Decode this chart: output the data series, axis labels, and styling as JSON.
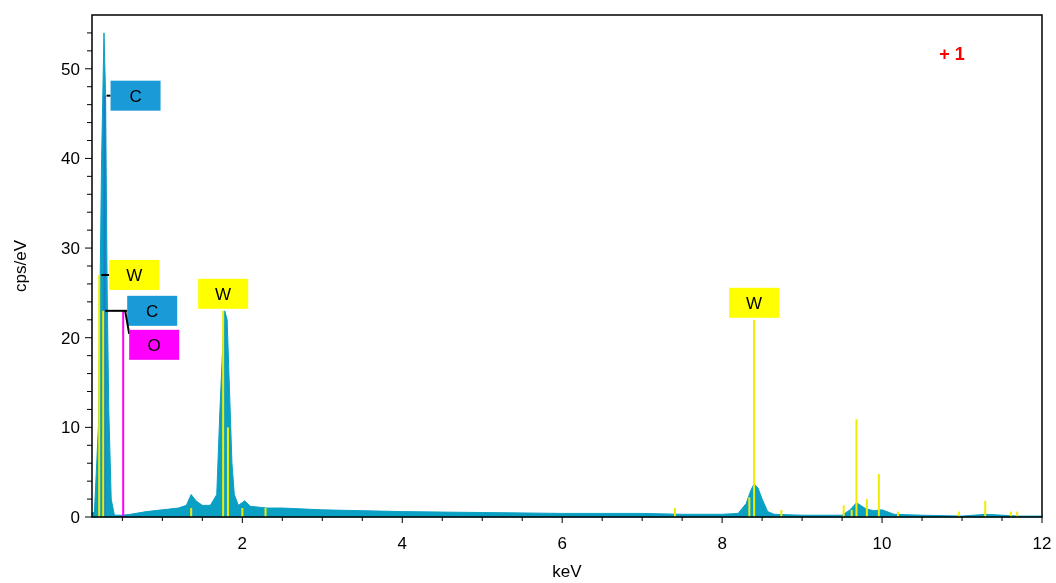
{
  "chart_data": {
    "type": "area",
    "xlabel": "keV",
    "ylabel": "cps/eV",
    "xlim": [
      0.12,
      12
    ],
    "ylim": [
      0,
      56
    ],
    "xticks": [
      {
        "value": 0.5,
        "label": null
      },
      {
        "value": 1,
        "label": null
      },
      {
        "value": 1.5,
        "label": null
      },
      2,
      {
        "value": 2.5,
        "label": null
      },
      {
        "value": 3,
        "label": null
      },
      {
        "value": 3.5,
        "label": null
      },
      4,
      {
        "value": 4.5,
        "label": null
      },
      {
        "value": 5,
        "label": null
      },
      {
        "value": 5.5,
        "label": null
      },
      6,
      {
        "value": 6.5,
        "label": null
      },
      {
        "value": 7,
        "label": null
      },
      {
        "value": 7.5,
        "label": null
      },
      8,
      {
        "value": 8.5,
        "label": null
      },
      {
        "value": 9,
        "label": null
      },
      {
        "value": 9.5,
        "label": null
      },
      10,
      {
        "value": 10.5,
        "label": null
      },
      {
        "value": 11,
        "label": null
      },
      {
        "value": 11.5,
        "label": null
      },
      12
    ],
    "yticks": [
      0,
      {
        "value": 2,
        "label": null
      },
      {
        "value": 4,
        "label": null
      },
      {
        "value": 6,
        "label": null
      },
      {
        "value": 8,
        "label": null
      },
      10,
      {
        "value": 12,
        "label": null
      },
      {
        "value": 14,
        "label": null
      },
      {
        "value": 16,
        "label": null
      },
      {
        "value": 18,
        "label": null
      },
      20,
      {
        "value": 22,
        "label": null
      },
      {
        "value": 24,
        "label": null
      },
      {
        "value": 26,
        "label": null
      },
      {
        "value": 28,
        "label": null
      },
      30,
      {
        "value": 32,
        "label": null
      },
      {
        "value": 34,
        "label": null
      },
      {
        "value": 36,
        "label": null
      },
      {
        "value": 38,
        "label": null
      },
      40,
      {
        "value": 42,
        "label": null
      },
      {
        "value": 44,
        "label": null
      },
      {
        "value": 46,
        "label": null
      },
      {
        "value": 48,
        "label": null
      },
      50,
      {
        "value": 52,
        "label": null
      },
      {
        "value": 54,
        "label": null
      }
    ],
    "grid": false,
    "series": [
      {
        "color": "#0aa0c4",
        "x": [
          0.12,
          0.15,
          0.2,
          0.24,
          0.27,
          0.29,
          0.31,
          0.33,
          0.36,
          0.4,
          0.5,
          0.6,
          0.8,
          1.0,
          1.2,
          1.3,
          1.36,
          1.42,
          1.5,
          1.6,
          1.68,
          1.72,
          1.76,
          1.78,
          1.81,
          1.84,
          1.87,
          1.9,
          1.95,
          2.03,
          2.1,
          2.3,
          2.5,
          3,
          4,
          5,
          6,
          7,
          7.5,
          8,
          8.2,
          8.3,
          8.36,
          8.4,
          8.45,
          8.5,
          8.57,
          8.65,
          9,
          9.5,
          9.6,
          9.68,
          9.8,
          9.9,
          10.0,
          10.15,
          10.5,
          11,
          11.3,
          11.7,
          12
        ],
        "values": [
          0.5,
          0.5,
          10,
          40,
          54,
          47,
          25,
          12,
          2,
          0.2,
          0.2,
          0.3,
          0.6,
          0.8,
          1.0,
          1.3,
          2.5,
          1.8,
          1.3,
          1.3,
          2.5,
          12,
          20,
          23,
          22,
          14,
          6,
          2.5,
          1.3,
          1.8,
          1.2,
          1.0,
          1.0,
          0.8,
          0.6,
          0.5,
          0.4,
          0.4,
          0.3,
          0.3,
          0.4,
          1.5,
          3,
          3.7,
          3.2,
          2,
          0.6,
          0.3,
          0.2,
          0.2,
          0.8,
          1.6,
          0.9,
          0.7,
          0.8,
          0.3,
          0.2,
          0.1,
          0.3,
          0.1,
          0.1
        ]
      },
      {
        "type": "bar",
        "color": "#1a7fc8",
        "x": [
          0.277
        ],
        "values": [
          47
        ]
      },
      {
        "type": "bar",
        "color": "#f0ec00",
        "x": [
          0.21,
          0.26,
          1.36,
          1.76,
          1.82,
          2.0,
          2.29,
          7.41,
          8.34,
          8.4,
          8.74,
          9.52,
          9.62,
          9.68,
          9.81,
          9.96,
          10.2,
          10.96,
          11.29,
          11.61,
          11.69
        ],
        "values": [
          27,
          23,
          1.0,
          23,
          10,
          1.0,
          1.0,
          1.0,
          2.2,
          22,
          0.8,
          1.3,
          0.8,
          10.9,
          2.0,
          4.8,
          0.6,
          0.6,
          1.8,
          0.6,
          0.6
        ]
      },
      {
        "type": "bar",
        "color": "#ff00ff",
        "x": [
          0.51
        ],
        "values": [
          23
        ]
      }
    ],
    "annotations": [
      {
        "text": "C",
        "x": 0.277,
        "y": 47
      },
      {
        "text": "W",
        "x": 0.21,
        "y": 27
      },
      {
        "text": "C",
        "x": 0.26,
        "y": 23
      },
      {
        "text": "O",
        "x": 0.51,
        "y": 23
      },
      {
        "text": "W",
        "x": 1.76,
        "y": 23
      },
      {
        "text": "W",
        "x": 8.4,
        "y": 22
      },
      "+ 1"
    ]
  }
}
